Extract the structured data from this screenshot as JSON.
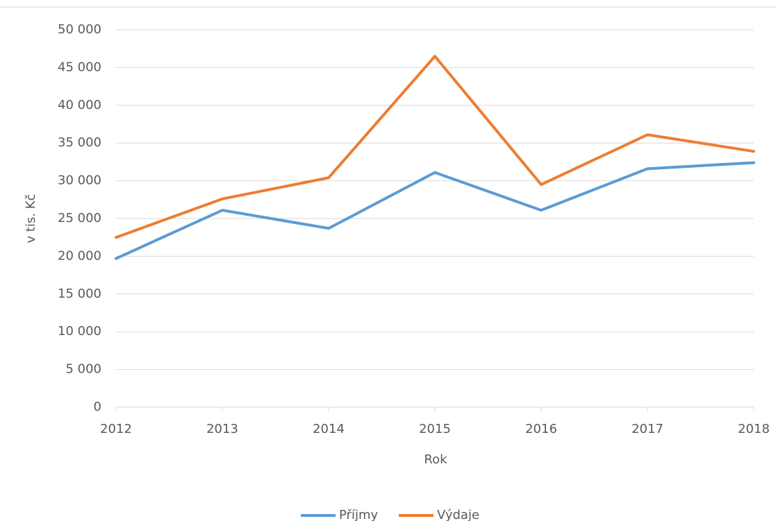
{
  "chart_data": {
    "type": "line",
    "x": [
      2012,
      2013,
      2014,
      2015,
      2016,
      2017,
      2018
    ],
    "series": [
      {
        "name": "Příjmy",
        "color": "#5b9bd5",
        "values": [
          19700,
          26100,
          23700,
          31100,
          26100,
          31600,
          32400
        ]
      },
      {
        "name": "Výdaje",
        "color": "#ed7d31",
        "values": [
          22500,
          27600,
          30400,
          46500,
          29500,
          36100,
          33900
        ]
      }
    ],
    "xlim": [
      2012,
      2018
    ],
    "xticks": [
      2012,
      2013,
      2014,
      2015,
      2016,
      2017,
      2018
    ],
    "ylim": [
      0,
      50000
    ],
    "yticks": [
      0,
      {
        "value": 5000,
        "label": "5 000"
      },
      {
        "value": 10000,
        "label": "10 000"
      },
      {
        "value": 15000,
        "label": "15 000"
      },
      {
        "value": 20000,
        "label": "20 000"
      },
      {
        "value": 25000,
        "label": "25 000"
      },
      {
        "value": 30000,
        "label": "30 000"
      },
      {
        "value": 35000,
        "label": "35 000"
      },
      {
        "value": 40000,
        "label": "40 000"
      },
      {
        "value": 45000,
        "label": "45 000"
      },
      {
        "value": 50000,
        "label": "50 000"
      }
    ],
    "xlabel": "Rok",
    "ylabel": "v tis. Kč",
    "grid": true,
    "legend": "bottom"
  }
}
